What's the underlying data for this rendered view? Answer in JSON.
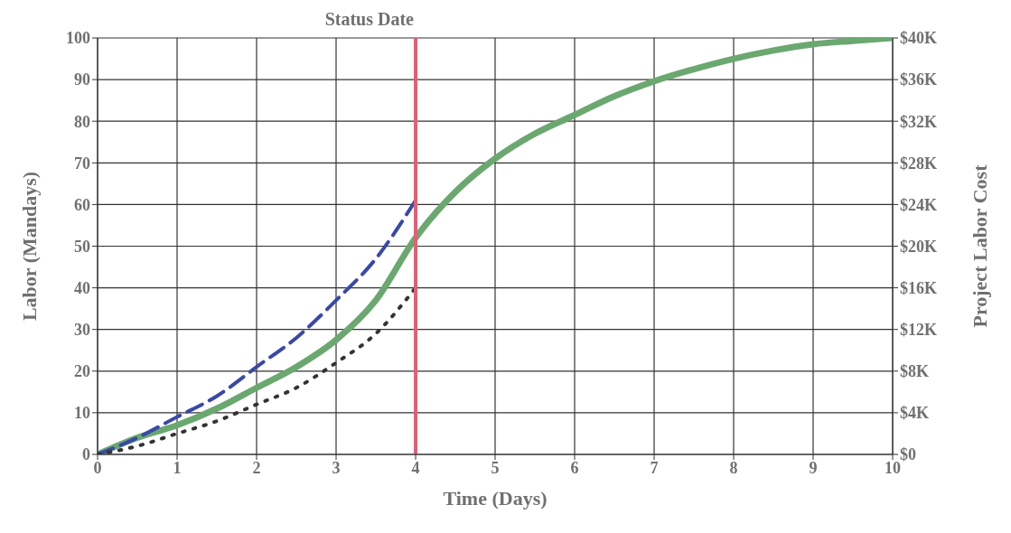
{
  "chart_data": {
    "type": "line",
    "xlabel": "Time (Days)",
    "ylabel": "Labor (Mandays)",
    "y2label": "Project Labor Cost",
    "xlim": [
      0,
      10
    ],
    "xticks": [
      0,
      1,
      2,
      3,
      4,
      5,
      6,
      7,
      8,
      9,
      10
    ],
    "ylim": [
      0,
      100
    ],
    "yticks": [
      0,
      10,
      20,
      30,
      40,
      50,
      60,
      70,
      80,
      90,
      100
    ],
    "y2lim": [
      0,
      40000
    ],
    "y2ticks": [
      {
        "value": 0,
        "label": "$0"
      },
      {
        "value": 4000,
        "label": "$4K"
      },
      {
        "value": 8000,
        "label": "$8K"
      },
      {
        "value": 12000,
        "label": "$12K"
      },
      {
        "value": 16000,
        "label": "$16K"
      },
      {
        "value": 20000,
        "label": "$20K"
      },
      {
        "value": 24000,
        "label": "$24K"
      },
      {
        "value": 28000,
        "label": "$28K"
      },
      {
        "value": 32000,
        "label": "$32K"
      },
      {
        "value": 36000,
        "label": "$36K"
      },
      {
        "value": 40000,
        "label": "$40K"
      }
    ],
    "grid": true,
    "series": [
      {
        "color": "#6aa870",
        "line_style": "solid",
        "x": [
          0,
          0.5,
          1,
          1.5,
          2,
          2.5,
          3,
          3.5,
          4,
          4.5,
          5,
          5.5,
          6,
          6.5,
          7,
          7.5,
          8,
          8.5,
          9,
          9.5,
          10
        ],
        "values": [
          0,
          4,
          7,
          11,
          16,
          21,
          27.5,
          37,
          52,
          63,
          71,
          77,
          81.5,
          86,
          89.6,
          92.5,
          95,
          97,
          98.5,
          99.3,
          100
        ]
      },
      {
        "color": "#3a48a8",
        "line_style": "dashed",
        "x": [
          0,
          0.5,
          1,
          1.5,
          2,
          2.5,
          3,
          3.5,
          4
        ],
        "values": [
          0,
          4,
          9,
          14,
          21,
          28,
          37,
          47,
          61
        ]
      },
      {
        "color": "#333333",
        "line_style": "dotted",
        "x": [
          0,
          0.5,
          1,
          1.5,
          2,
          2.5,
          3,
          3.5,
          4
        ],
        "values": [
          0,
          2,
          5,
          8,
          12,
          16,
          22,
          29,
          40
        ]
      }
    ],
    "ref_lines": [
      {
        "axis": "x",
        "value": 4,
        "label": "Status Date",
        "color": "#e06078"
      }
    ]
  }
}
